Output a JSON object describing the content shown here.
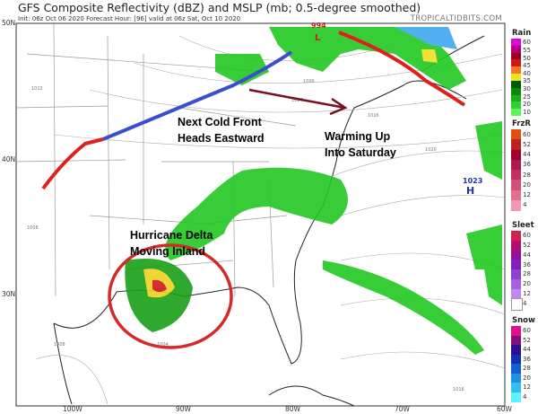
{
  "header": {
    "title": "GFS Composite Reflectivity (dBZ) and MSLP (mb; 0.5-degree smoothed)",
    "subtitle": "Init: 06z Oct 06 2020   Forecast Hour: [96]   valid at 06z Sat, Oct 10 2020",
    "brand": "TROPICALTIDBITS.COM"
  },
  "axes": {
    "lat_labels": [
      "50N",
      "40N",
      "30N"
    ],
    "lon_labels": [
      "100W",
      "90W",
      "80W",
      "70W",
      "60W"
    ]
  },
  "annotations": {
    "cold_front": [
      "Next Cold Front",
      "Heads Eastward"
    ],
    "warming": [
      "Warming Up",
      "Into Saturday"
    ],
    "hurricane": [
      "Hurricane Delta",
      "Moving Inland"
    ],
    "low_pressure": "994",
    "low_symbol": "L",
    "high_pressure": "1023",
    "high_symbol": "H",
    "isobars": [
      "1000",
      "1004",
      "1008",
      "1012",
      "1016",
      "1020",
      "1008",
      "1004",
      "1016"
    ]
  },
  "colors": {
    "warm_front": "#e02020",
    "cold_front": "#3a4fd0",
    "arrow": "#7a1020",
    "circle": "#d42a2a",
    "high": "#2233aa"
  },
  "legend": [
    {
      "name": "Rain",
      "ticks": [
        "60",
        "55",
        "50",
        "45",
        "40",
        "35",
        "30",
        "25",
        "20",
        "10"
      ],
      "colors": [
        "#e000e0",
        "#b0007a",
        "#a00020",
        "#d01818",
        "#f07820",
        "#f0e020",
        "#005a00",
        "#0a8a0a",
        "#18b018",
        "#30d030",
        "#60f060"
      ]
    },
    {
      "name": "FrzR",
      "ticks": [
        "60",
        "52",
        "44",
        "36",
        "28",
        "20",
        "12",
        "4"
      ],
      "colors": [
        "#e05010",
        "#c02020",
        "#a00030",
        "#b01850",
        "#c03060",
        "#d05078",
        "#e07090",
        "#f098b0"
      ]
    },
    {
      "name": "Sleet",
      "ticks": [
        "60",
        "52",
        "44",
        "36",
        "28",
        "20",
        "12",
        "4"
      ],
      "colors": [
        "#d02050",
        "#b01070",
        "#9010a0",
        "#8020c0",
        "#9040d0",
        "#a860e0",
        "#c088f0",
        "#ffffff"
      ]
    },
    {
      "name": "Snow",
      "ticks": [
        "60",
        "52",
        "44",
        "36",
        "28",
        "20",
        "12",
        "4"
      ],
      "colors": [
        "#e0108a",
        "#801080",
        "#2a1090",
        "#1030b0",
        "#1060d0",
        "#2090e0",
        "#30c0f0",
        "#60f0f8"
      ]
    }
  ]
}
